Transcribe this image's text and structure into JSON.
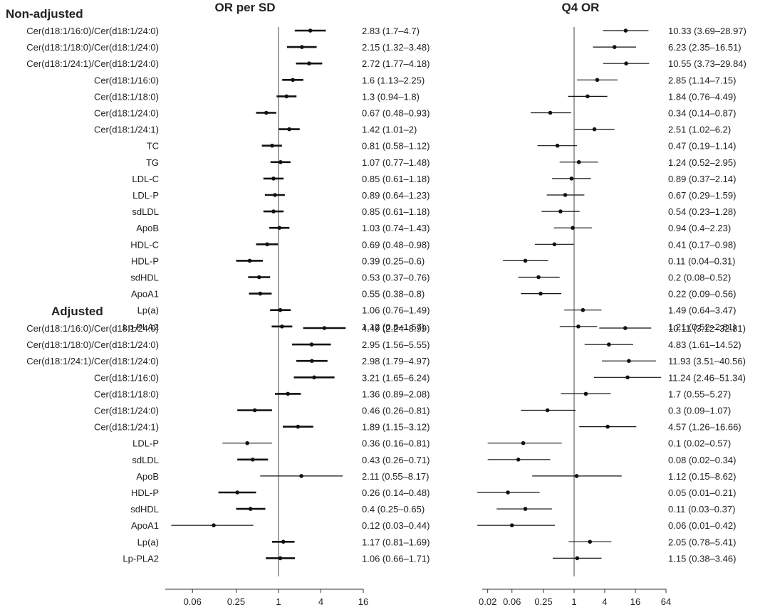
{
  "chart_data": {
    "type": "forest",
    "scale": "log2",
    "panels": [
      {
        "title": "OR per SD",
        "xticks": [
          "0.06",
          "0.25",
          "1",
          "4",
          "16"
        ],
        "xlim": [
          0.0208,
          16
        ]
      },
      {
        "title": "Q4 OR",
        "xticks": [
          "0.02",
          "0.06",
          "0.25",
          "1",
          "4",
          "16",
          "64"
        ],
        "xlim": [
          0.0208,
          64
        ]
      }
    ],
    "sections": [
      {
        "title": "Non-adjusted",
        "rows": [
          {
            "label": "Cer(d18:1/16:0)/Cer(d18:1/24:0)",
            "or_sd": [
              2.83,
              1.7,
              4.7
            ],
            "or_sd_text": "2.83 (1.7–4.7)",
            "q4": [
              10.33,
              3.69,
              28.97
            ],
            "q4_text": "10.33 (3.69–28.97)"
          },
          {
            "label": "Cer(d18:1/18:0)/Cer(d18:1/24:0)",
            "or_sd": [
              2.15,
              1.32,
              3.48
            ],
            "or_sd_text": "2.15 (1.32–3.48)",
            "q4": [
              6.23,
              2.35,
              16.51
            ],
            "q4_text": "6.23 (2.35–16.51)"
          },
          {
            "label": "Cer(d18:1/24:1)/Cer(d18:1/24:0)",
            "or_sd": [
              2.72,
              1.77,
              4.18
            ],
            "or_sd_text": "2.72 (1.77–4.18)",
            "q4": [
              10.55,
              3.73,
              29.84
            ],
            "q4_text": "10.55 (3.73–29.84)"
          },
          {
            "label": "Cer(d18:1/16:0)",
            "or_sd": [
              1.6,
              1.13,
              2.25
            ],
            "or_sd_text": "1.6 (1.13–2.25)",
            "q4": [
              2.85,
              1.14,
              7.15
            ],
            "q4_text": "2.85 (1.14–7.15)"
          },
          {
            "label": "Cer(d18:1/18:0)",
            "or_sd": [
              1.3,
              0.94,
              1.8
            ],
            "or_sd_text": "1.3 (0.94–1.8)",
            "q4": [
              1.84,
              0.76,
              4.49
            ],
            "q4_text": "1.84 (0.76–4.49)"
          },
          {
            "label": "Cer(d18:1/24:0)",
            "or_sd": [
              0.67,
              0.48,
              0.93
            ],
            "or_sd_text": "0.67 (0.48–0.93)",
            "q4": [
              0.34,
              0.14,
              0.87
            ],
            "q4_text": "0.34 (0.14–0.87)"
          },
          {
            "label": "Cer(d18:1/24:1)",
            "or_sd": [
              1.42,
              1.01,
              2
            ],
            "or_sd_text": "1.42 (1.01–2)",
            "q4": [
              2.51,
              1.02,
              6.2
            ],
            "q4_text": "2.51 (1.02–6.2)"
          },
          {
            "label": "TC",
            "or_sd": [
              0.81,
              0.58,
              1.12
            ],
            "or_sd_text": "0.81 (0.58–1.12)",
            "q4": [
              0.47,
              0.19,
              1.14
            ],
            "q4_text": "0.47 (0.19–1.14)"
          },
          {
            "label": "TG",
            "or_sd": [
              1.07,
              0.77,
              1.48
            ],
            "or_sd_text": "1.07 (0.77–1.48)",
            "q4": [
              1.24,
              0.52,
              2.95
            ],
            "q4_text": "1.24 (0.52–2.95)"
          },
          {
            "label": "LDL-C",
            "or_sd": [
              0.85,
              0.61,
              1.18
            ],
            "or_sd_text": "0.85 (0.61–1.18)",
            "q4": [
              0.89,
              0.37,
              2.14
            ],
            "q4_text": "0.89 (0.37–2.14)"
          },
          {
            "label": "LDL-P",
            "or_sd": [
              0.89,
              0.64,
              1.23
            ],
            "or_sd_text": "0.89 (0.64–1.23)",
            "q4": [
              0.67,
              0.29,
              1.59
            ],
            "q4_text": "0.67 (0.29–1.59)"
          },
          {
            "label": "sdLDL",
            "or_sd": [
              0.85,
              0.61,
              1.18
            ],
            "or_sd_text": "0.85 (0.61–1.18)",
            "q4": [
              0.54,
              0.23,
              1.28
            ],
            "q4_text": "0.54 (0.23–1.28)"
          },
          {
            "label": "ApoB",
            "or_sd": [
              1.03,
              0.74,
              1.43
            ],
            "or_sd_text": "1.03 (0.74–1.43)",
            "q4": [
              0.94,
              0.4,
              2.23
            ],
            "q4_text": "0.94 (0.4–2.23)"
          },
          {
            "label": "HDL-C",
            "or_sd": [
              0.69,
              0.48,
              0.98
            ],
            "or_sd_text": "0.69 (0.48–0.98)",
            "q4": [
              0.41,
              0.17,
              0.98
            ],
            "q4_text": "0.41 (0.17–0.98)"
          },
          {
            "label": "HDL-P",
            "or_sd": [
              0.39,
              0.25,
              0.6
            ],
            "or_sd_text": "0.39 (0.25–0.6)",
            "q4": [
              0.11,
              0.04,
              0.31
            ],
            "q4_text": "0.11 (0.04–0.31)"
          },
          {
            "label": "sdHDL",
            "or_sd": [
              0.53,
              0.37,
              0.76
            ],
            "or_sd_text": "0.53 (0.37–0.76)",
            "q4": [
              0.2,
              0.08,
              0.52
            ],
            "q4_text": "0.2 (0.08–0.52)"
          },
          {
            "label": "ApoA1",
            "or_sd": [
              0.55,
              0.38,
              0.8
            ],
            "or_sd_text": "0.55 (0.38–0.8)",
            "q4": [
              0.22,
              0.09,
              0.56
            ],
            "q4_text": "0.22 (0.09–0.56)"
          },
          {
            "label": "Lp(a)",
            "or_sd": [
              1.06,
              0.76,
              1.49
            ],
            "or_sd_text": "1.06 (0.76–1.49)",
            "q4": [
              1.49,
              0.64,
              3.47
            ],
            "q4_text": "1.49 (0.64–3.47)"
          },
          {
            "label": "Lp-PLA2",
            "or_sd": [
              1.12,
              0.8,
              1.57
            ],
            "or_sd_text": "1.12 (0.8–1.57)",
            "q4": [
              1.21,
              0.52,
              2.81
            ],
            "q4_text": "1.21 (0.52–2.81)"
          }
        ]
      },
      {
        "title": "Adjusted",
        "rows": [
          {
            "label": "Cer(d18:1/16:0)/Cer(d18:1/24:0)",
            "or_sd": [
              4.49,
              2.24,
              8.99
            ],
            "or_sd_text": "4.49 (2.24–8.99)",
            "q4": [
              10.11,
              3.12,
              32.81
            ],
            "q4_text": "10.11 (3.12–32.81)"
          },
          {
            "label": "Cer(d18:1/18:0)/Cer(d18:1/24:0)",
            "or_sd": [
              2.95,
              1.56,
              5.55
            ],
            "or_sd_text": "2.95 (1.56–5.55)",
            "q4": [
              4.83,
              1.61,
              14.52
            ],
            "q4_text": "4.83 (1.61–14.52)"
          },
          {
            "label": "Cer(d18:1/24:1)/Cer(d18:1/24:0)",
            "or_sd": [
              2.98,
              1.79,
              4.97
            ],
            "or_sd_text": "2.98 (1.79–4.97)",
            "q4": [
              11.93,
              3.51,
              40.56
            ],
            "q4_text": "11.93 (3.51–40.56)"
          },
          {
            "label": "Cer(d18:1/16:0)",
            "or_sd": [
              3.21,
              1.65,
              6.24
            ],
            "or_sd_text": "3.21 (1.65–6.24)",
            "q4": [
              11.24,
              2.46,
              51.34
            ],
            "q4_text": "11.24 (2.46–51.34)"
          },
          {
            "label": "Cer(d18:1/18:0)",
            "or_sd": [
              1.36,
              0.89,
              2.08
            ],
            "or_sd_text": "1.36 (0.89–2.08)",
            "q4": [
              1.7,
              0.55,
              5.27
            ],
            "q4_text": "1.7 (0.55–5.27)"
          },
          {
            "label": "Cer(d18:1/24:0)",
            "or_sd": [
              0.46,
              0.26,
              0.81
            ],
            "or_sd_text": "0.46 (0.26–0.81)",
            "q4": [
              0.3,
              0.09,
              1.07
            ],
            "q4_text": "0.3 (0.09–1.07)"
          },
          {
            "label": "Cer(d18:1/24:1)",
            "or_sd": [
              1.89,
              1.15,
              3.12
            ],
            "or_sd_text": "1.89 (1.15–3.12)",
            "q4": [
              4.57,
              1.26,
              16.66
            ],
            "q4_text": "4.57 (1.26–16.66)"
          },
          {
            "label": "LDL-P",
            "or_sd": [
              0.36,
              0.16,
              0.81
            ],
            "or_sd_text": "0.36 (0.16–0.81)",
            "q4": [
              0.1,
              0.02,
              0.57
            ],
            "q4_text": "0.1 (0.02–0.57)"
          },
          {
            "label": "sdLDL",
            "or_sd": [
              0.43,
              0.26,
              0.71
            ],
            "or_sd_text": "0.43 (0.26–0.71)",
            "q4": [
              0.08,
              0.02,
              0.34
            ],
            "q4_text": "0.08 (0.02–0.34)"
          },
          {
            "label": "ApoB",
            "or_sd": [
              2.11,
              0.55,
              8.17
            ],
            "or_sd_text": "2.11 (0.55–8.17)",
            "q4": [
              1.12,
              0.15,
              8.62
            ],
            "q4_text": "1.12 (0.15–8.62)"
          },
          {
            "label": "HDL-P",
            "or_sd": [
              0.26,
              0.14,
              0.48
            ],
            "or_sd_text": "0.26 (0.14–0.48)",
            "q4": [
              0.05,
              0.01,
              0.21
            ],
            "q4_text": "0.05 (0.01–0.21)"
          },
          {
            "label": "sdHDL",
            "or_sd": [
              0.4,
              0.25,
              0.65
            ],
            "or_sd_text": "0.4 (0.25–0.65)",
            "q4": [
              0.11,
              0.03,
              0.37
            ],
            "q4_text": "0.11 (0.03–0.37)"
          },
          {
            "label": "ApoA1",
            "or_sd": [
              0.12,
              0.03,
              0.44
            ],
            "or_sd_text": "0.12 (0.03–0.44)",
            "q4": [
              0.06,
              0.01,
              0.42
            ],
            "q4_text": "0.06 (0.01–0.42)"
          },
          {
            "label": "Lp(a)",
            "or_sd": [
              1.17,
              0.81,
              1.69
            ],
            "or_sd_text": "1.17 (0.81–1.69)",
            "q4": [
              2.05,
              0.78,
              5.41
            ],
            "q4_text": "2.05 (0.78–5.41)"
          },
          {
            "label": "Lp-PLA2",
            "or_sd": [
              1.06,
              0.66,
              1.71
            ],
            "or_sd_text": "1.06 (0.66–1.71)",
            "q4": [
              1.15,
              0.38,
              3.46
            ],
            "q4_text": "1.15 (0.38–3.46)"
          }
        ]
      }
    ],
    "colors": {
      "line": "#111111",
      "text": "#222222",
      "reference_line": "#444444"
    }
  }
}
